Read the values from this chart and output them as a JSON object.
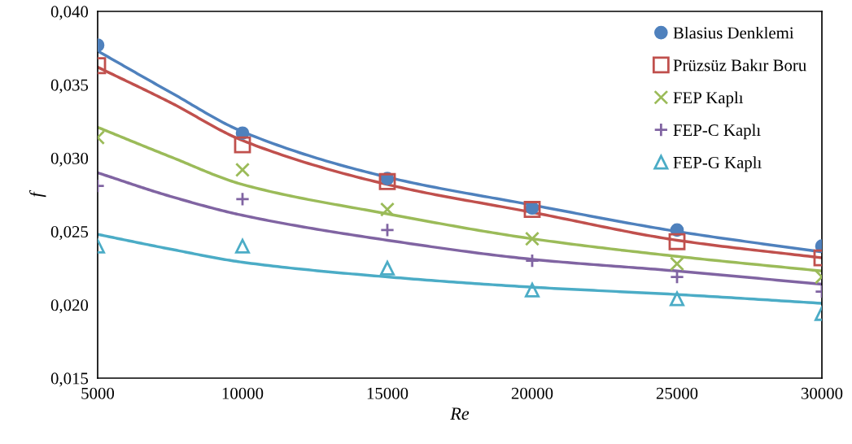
{
  "chart_data": {
    "type": "scatter",
    "xlabel": "Re",
    "ylabel": "f",
    "xlim": [
      5000,
      30000
    ],
    "xticks": [
      5000,
      10000,
      15000,
      20000,
      25000,
      30000
    ],
    "ylim": [
      0.015,
      0.04
    ],
    "yticks": [
      {
        "value": 0.015,
        "label": "0,015"
      },
      {
        "value": 0.02,
        "label": "0,020"
      },
      {
        "value": 0.025,
        "label": "0,025"
      },
      {
        "value": 0.03,
        "label": "0,030"
      },
      {
        "value": 0.035,
        "label": "0,035"
      },
      {
        "value": 0.04,
        "label": "0,040"
      }
    ],
    "x": [
      5000,
      10000,
      15000,
      20000,
      25000,
      30000
    ],
    "grid": false,
    "legend": "top right",
    "series": [
      {
        "type": "line",
        "color": "#4f81bd",
        "marker": "none",
        "line_style": "solid",
        "x": [
          5000,
          7500,
          10000,
          15000,
          20000,
          25000,
          30000
        ],
        "values": [
          0.0373,
          0.0345,
          0.0318,
          0.0287,
          0.0268,
          0.025,
          0.0236
        ]
      },
      {
        "type": "line",
        "color": "#c0504d",
        "marker": "none",
        "line_style": "solid",
        "x": [
          5000,
          7500,
          10000,
          15000,
          20000,
          25000,
          30000
        ],
        "values": [
          0.0362,
          0.0338,
          0.0312,
          0.0282,
          0.0263,
          0.0244,
          0.0232
        ]
      },
      {
        "type": "line",
        "color": "#9bbb59",
        "marker": "none",
        "line_style": "solid",
        "x": [
          5000,
          7500,
          10000,
          15000,
          20000,
          25000,
          30000
        ],
        "values": [
          0.0321,
          0.0301,
          0.0282,
          0.0262,
          0.0245,
          0.0233,
          0.0223
        ]
      },
      {
        "type": "line",
        "color": "#8064a2",
        "marker": "none",
        "line_style": "solid",
        "x": [
          5000,
          7500,
          10000,
          15000,
          20000,
          25000,
          30000
        ],
        "values": [
          0.029,
          0.0274,
          0.0261,
          0.0244,
          0.0231,
          0.0223,
          0.0214
        ]
      },
      {
        "type": "line",
        "color": "#4bacc6",
        "marker": "none",
        "line_style": "solid",
        "x": [
          5000,
          7500,
          10000,
          15000,
          20000,
          25000,
          30000
        ],
        "values": [
          0.0248,
          0.0238,
          0.0229,
          0.0219,
          0.0212,
          0.0207,
          0.0201
        ]
      },
      {
        "name": "Blasius Denklemi",
        "color": "#4f81bd",
        "marker": "circle",
        "values": [
          0.0377,
          0.0317,
          0.0286,
          0.0266,
          0.0251,
          0.024
        ]
      },
      {
        "name": "Prüzsüz Bakır Boru",
        "color": "#c0504d",
        "marker": "square",
        "values": [
          0.0363,
          0.0309,
          0.0284,
          0.0265,
          0.0243,
          0.0232
        ]
      },
      {
        "name": "FEP Kaplı",
        "color": "#9bbb59",
        "marker": "cross",
        "values": [
          0.0314,
          0.0292,
          0.0265,
          0.0245,
          0.0228,
          0.0219
        ]
      },
      {
        "name": "FEP-C Kaplı",
        "color": "#8064a2",
        "marker": "plus",
        "values": [
          0.0281,
          0.0272,
          0.0251,
          0.023,
          0.0219,
          0.0209
        ]
      },
      {
        "name": "FEP-G Kaplı",
        "color": "#4bacc6",
        "marker": "triangle",
        "values": [
          0.024,
          0.024,
          0.0225,
          0.021,
          0.0204,
          0.0194
        ]
      }
    ]
  }
}
